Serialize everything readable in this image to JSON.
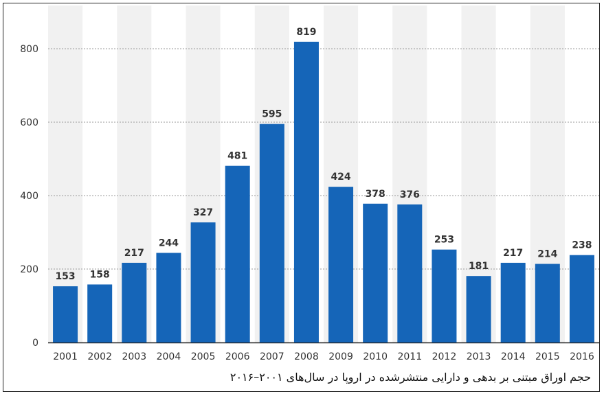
{
  "chart_data": {
    "type": "bar",
    "categories": [
      "2001",
      "2002",
      "2003",
      "2004",
      "2005",
      "2006",
      "2007",
      "2008",
      "2009",
      "2010",
      "2011",
      "2012",
      "2013",
      "2014",
      "2015",
      "2016"
    ],
    "values": [
      153,
      158,
      217,
      244,
      327,
      481,
      595,
      819,
      424,
      378,
      376,
      253,
      181,
      217,
      214,
      238
    ],
    "y_ticks": [
      "0",
      "200",
      "400",
      "600",
      "800"
    ],
    "ylim": [
      0,
      850
    ],
    "grid": true,
    "bar_color": "#1565b8",
    "caption": "حجم اوراق مبتنی بر بدهی و دارایی منتشرشده در اروپا در سال‌های ۲۰۰۱–۲۰۱۶"
  }
}
